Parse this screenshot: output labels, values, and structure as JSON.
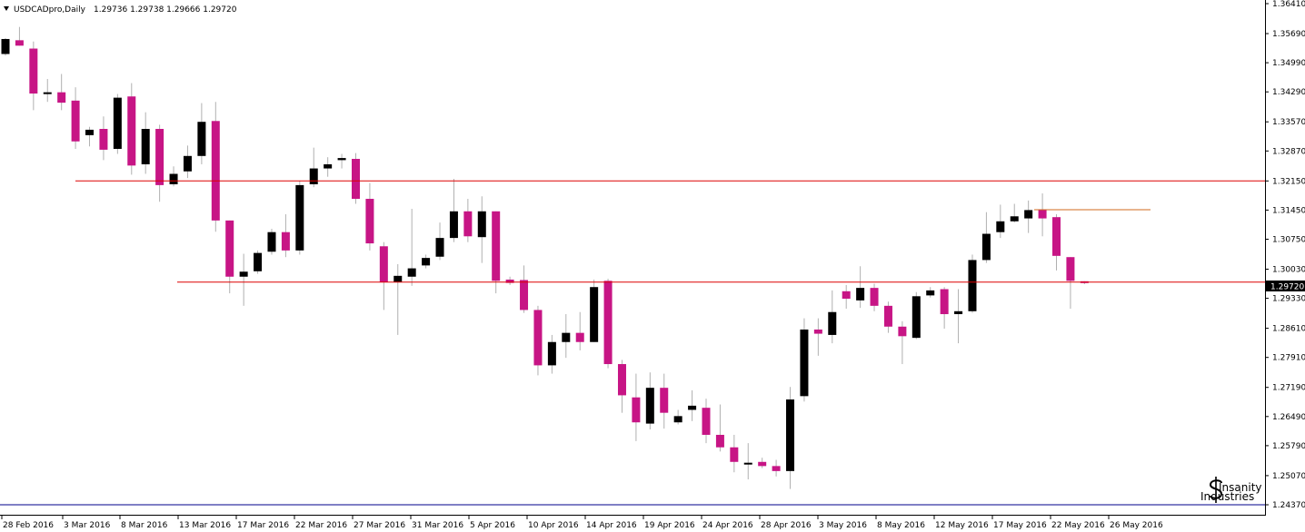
{
  "header": {
    "symbol": "USDCADpro,Daily",
    "ohlc": "1.29736 1.29738 1.29666 1.29720"
  },
  "watermark": {
    "text_line1": "Insanity",
    "text_line2": "Industries",
    "icon": "dollar-sign-icon"
  },
  "colors": {
    "bull": "#000000",
    "bear": "#c71585",
    "wick": "#b0b0b0",
    "level": "#dd0000",
    "trend": "#d2691e",
    "base": "#00008b"
  },
  "chart_data": {
    "type": "candlestick",
    "symbol": "USDCADpro",
    "timeframe": "Daily",
    "ylim": [
      1.2437,
      1.3641
    ],
    "y_ticks": [
      "1.36410",
      "1.35690",
      "1.34990",
      "1.34290",
      "1.33570",
      "1.32870",
      "1.32150",
      "1.31450",
      "1.30750",
      "1.30030",
      "1.29330",
      "1.28610",
      "1.27910",
      "1.27190",
      "1.26490",
      "1.25790",
      "1.25070",
      "1.24370"
    ],
    "x_labels": [
      "28 Feb 2016",
      "3 Mar 2016",
      "8 Mar 2016",
      "13 Mar 2016",
      "17 Mar 2016",
      "22 Mar 2016",
      "27 Mar 2016",
      "31 Mar 2016",
      "5 Apr 2016",
      "10 Apr 2016",
      "14 Apr 2016",
      "19 Apr 2016",
      "24 Apr 2016",
      "28 Apr 2016",
      "3 May 2016",
      "8 May 2016",
      "12 May 2016",
      "17 May 2016",
      "22 May 2016",
      "26 May 2016"
    ],
    "current_price": "1.29720",
    "horizontal_levels": [
      1.3215,
      1.2972
    ],
    "short_level": 1.3146,
    "candles": [
      {
        "date": "28 Feb 2016",
        "o": 1.352,
        "h": 1.3558,
        "l": 1.3516,
        "c": 1.3556
      },
      {
        "date": "29 Feb 2016",
        "o": 1.3553,
        "h": 1.3585,
        "l": 1.354,
        "c": 1.354
      },
      {
        "date": "1 Mar 2016",
        "o": 1.3533,
        "h": 1.355,
        "l": 1.3385,
        "c": 1.3425
      },
      {
        "date": "2 Mar 2016",
        "o": 1.3425,
        "h": 1.346,
        "l": 1.3405,
        "c": 1.3428
      },
      {
        "date": "3 Mar 2016",
        "o": 1.3428,
        "h": 1.3472,
        "l": 1.3385,
        "c": 1.3403
      },
      {
        "date": "4 Mar 2016",
        "o": 1.3408,
        "h": 1.344,
        "l": 1.3292,
        "c": 1.331
      },
      {
        "date": "6 Mar 2016",
        "o": 1.3325,
        "h": 1.3345,
        "l": 1.3298,
        "c": 1.3338
      },
      {
        "date": "7 Mar 2016",
        "o": 1.334,
        "h": 1.337,
        "l": 1.3265,
        "c": 1.329
      },
      {
        "date": "8 Mar 2016",
        "o": 1.3292,
        "h": 1.3424,
        "l": 1.328,
        "c": 1.3415
      },
      {
        "date": "9 Mar 2016",
        "o": 1.3418,
        "h": 1.345,
        "l": 1.323,
        "c": 1.3252
      },
      {
        "date": "10 Mar 2016",
        "o": 1.3255,
        "h": 1.338,
        "l": 1.3232,
        "c": 1.334
      },
      {
        "date": "11 Mar 2016",
        "o": 1.334,
        "h": 1.335,
        "l": 1.3165,
        "c": 1.3205
      },
      {
        "date": "13 Mar 2016",
        "o": 1.3207,
        "h": 1.325,
        "l": 1.3202,
        "c": 1.3232
      },
      {
        "date": "14 Mar 2016",
        "o": 1.3238,
        "h": 1.33,
        "l": 1.3222,
        "c": 1.3275
      },
      {
        "date": "15 Mar 2016",
        "o": 1.3275,
        "h": 1.3402,
        "l": 1.3255,
        "c": 1.3357
      },
      {
        "date": "16 Mar 2016",
        "o": 1.3359,
        "h": 1.3405,
        "l": 1.3093,
        "c": 1.312
      },
      {
        "date": "17 Mar 2016",
        "o": 1.312,
        "h": 1.312,
        "l": 1.2945,
        "c": 1.2985
      },
      {
        "date": "18 Mar 2016",
        "o": 1.2985,
        "h": 1.304,
        "l": 1.2915,
        "c": 1.2997
      },
      {
        "date": "20 Mar 2016",
        "o": 1.2998,
        "h": 1.3048,
        "l": 1.2992,
        "c": 1.3042
      },
      {
        "date": "21 Mar 2016",
        "o": 1.3045,
        "h": 1.31,
        "l": 1.3038,
        "c": 1.3092
      },
      {
        "date": "22 Mar 2016",
        "o": 1.3092,
        "h": 1.3135,
        "l": 1.3032,
        "c": 1.3048
      },
      {
        "date": "23 Mar 2016",
        "o": 1.3048,
        "h": 1.3215,
        "l": 1.3038,
        "c": 1.3205
      },
      {
        "date": "24 Mar 2016",
        "o": 1.3207,
        "h": 1.3295,
        "l": 1.32,
        "c": 1.3245
      },
      {
        "date": "25 Mar 2016",
        "o": 1.3245,
        "h": 1.3272,
        "l": 1.3225,
        "c": 1.3255
      },
      {
        "date": "27 Mar 2016",
        "o": 1.3265,
        "h": 1.328,
        "l": 1.3245,
        "c": 1.327
      },
      {
        "date": "28 Mar 2016",
        "o": 1.3268,
        "h": 1.3282,
        "l": 1.316,
        "c": 1.3172
      },
      {
        "date": "29 Mar 2016",
        "o": 1.3172,
        "h": 1.321,
        "l": 1.3048,
        "c": 1.3065
      },
      {
        "date": "30 Mar 2016",
        "o": 1.3058,
        "h": 1.3068,
        "l": 1.2905,
        "c": 1.2972
      },
      {
        "date": "31 Mar 2016",
        "o": 1.2972,
        "h": 1.3015,
        "l": 1.2845,
        "c": 1.2987
      },
      {
        "date": "1 Apr 2016",
        "o": 1.2985,
        "h": 1.3148,
        "l": 1.2963,
        "c": 1.3005
      },
      {
        "date": "3 Apr 2016",
        "o": 1.3012,
        "h": 1.3038,
        "l": 1.3005,
        "c": 1.303
      },
      {
        "date": "4 Apr 2016",
        "o": 1.3033,
        "h": 1.3115,
        "l": 1.3025,
        "c": 1.3078
      },
      {
        "date": "5 Apr 2016",
        "o": 1.3078,
        "h": 1.322,
        "l": 1.3068,
        "c": 1.3142
      },
      {
        "date": "6 Apr 2016",
        "o": 1.3142,
        "h": 1.3172,
        "l": 1.3068,
        "c": 1.3082
      },
      {
        "date": "7 Apr 2016",
        "o": 1.308,
        "h": 1.3178,
        "l": 1.3018,
        "c": 1.3142
      },
      {
        "date": "8 Apr 2016",
        "o": 1.3142,
        "h": 1.3142,
        "l": 1.2945,
        "c": 1.2975
      },
      {
        "date": "10 Apr 2016",
        "o": 1.2978,
        "h": 1.2985,
        "l": 1.2965,
        "c": 1.297
      },
      {
        "date": "11 Apr 2016",
        "o": 1.2977,
        "h": 1.3012,
        "l": 1.2898,
        "c": 1.2905
      },
      {
        "date": "12 Apr 2016",
        "o": 1.2905,
        "h": 1.2915,
        "l": 1.2748,
        "c": 1.2772
      },
      {
        "date": "13 Apr 2016",
        "o": 1.2772,
        "h": 1.2845,
        "l": 1.2752,
        "c": 1.2828
      },
      {
        "date": "14 Apr 2016",
        "o": 1.2828,
        "h": 1.2895,
        "l": 1.279,
        "c": 1.285
      },
      {
        "date": "15 Apr 2016",
        "o": 1.285,
        "h": 1.29,
        "l": 1.2808,
        "c": 1.2828
      },
      {
        "date": "17 Apr 2016",
        "o": 1.2828,
        "h": 1.2978,
        "l": 1.2828,
        "c": 1.296
      },
      {
        "date": "18 Apr 2016",
        "o": 1.2975,
        "h": 1.298,
        "l": 1.2765,
        "c": 1.2775
      },
      {
        "date": "19 Apr 2016",
        "o": 1.2775,
        "h": 1.2785,
        "l": 1.2658,
        "c": 1.27
      },
      {
        "date": "20 Apr 2016",
        "o": 1.2695,
        "h": 1.2752,
        "l": 1.259,
        "c": 1.2635
      },
      {
        "date": "21 Apr 2016",
        "o": 1.2632,
        "h": 1.2755,
        "l": 1.2618,
        "c": 1.2718
      },
      {
        "date": "22 Apr 2016",
        "o": 1.2718,
        "h": 1.2752,
        "l": 1.262,
        "c": 1.2658
      },
      {
        "date": "24 Apr 2016",
        "o": 1.2635,
        "h": 1.2665,
        "l": 1.263,
        "c": 1.265
      },
      {
        "date": "25 Apr 2016",
        "o": 1.2665,
        "h": 1.2712,
        "l": 1.2638,
        "c": 1.2675
      },
      {
        "date": "26 Apr 2016",
        "o": 1.267,
        "h": 1.2692,
        "l": 1.2585,
        "c": 1.2605
      },
      {
        "date": "27 Apr 2016",
        "o": 1.2605,
        "h": 1.2678,
        "l": 1.2565,
        "c": 1.2575
      },
      {
        "date": "28 Apr 2016",
        "o": 1.2575,
        "h": 1.2605,
        "l": 1.2515,
        "c": 1.254
      },
      {
        "date": "29 Apr 2016",
        "o": 1.2538,
        "h": 1.2585,
        "l": 1.2498,
        "c": 1.2538
      },
      {
        "date": "1 May 2016",
        "o": 1.254,
        "h": 1.255,
        "l": 1.2525,
        "c": 1.253
      },
      {
        "date": "2 May 2016",
        "o": 1.253,
        "h": 1.2545,
        "l": 1.2505,
        "c": 1.2518
      },
      {
        "date": "3 May 2016",
        "o": 1.2518,
        "h": 1.272,
        "l": 1.2475,
        "c": 1.269
      },
      {
        "date": "4 May 2016",
        "o": 1.2698,
        "h": 1.2885,
        "l": 1.2685,
        "c": 1.2858
      },
      {
        "date": "5 May 2016",
        "o": 1.2858,
        "h": 1.2885,
        "l": 1.2795,
        "c": 1.2848
      },
      {
        "date": "6 May 2016",
        "o": 1.2845,
        "h": 1.2952,
        "l": 1.2825,
        "c": 1.29
      },
      {
        "date": "8 May 2016",
        "o": 1.295,
        "h": 1.2965,
        "l": 1.2908,
        "c": 1.2932
      },
      {
        "date": "9 May 2016",
        "o": 1.2928,
        "h": 1.301,
        "l": 1.291,
        "c": 1.2958
      },
      {
        "date": "10 May 2016",
        "o": 1.2958,
        "h": 1.2968,
        "l": 1.2902,
        "c": 1.2915
      },
      {
        "date": "11 May 2016",
        "o": 1.2915,
        "h": 1.2925,
        "l": 1.285,
        "c": 1.2865
      },
      {
        "date": "12 May 2016",
        "o": 1.2865,
        "h": 1.2878,
        "l": 1.2775,
        "c": 1.2842
      },
      {
        "date": "13 May 2016",
        "o": 1.2838,
        "h": 1.2948,
        "l": 1.2835,
        "c": 1.2938
      },
      {
        "date": "15 May 2016",
        "o": 1.294,
        "h": 1.296,
        "l": 1.2935,
        "c": 1.2952
      },
      {
        "date": "16 May 2016",
        "o": 1.2955,
        "h": 1.296,
        "l": 1.286,
        "c": 1.2895
      },
      {
        "date": "17 May 2016",
        "o": 1.2895,
        "h": 1.2955,
        "l": 1.2825,
        "c": 1.2902
      },
      {
        "date": "18 May 2016",
        "o": 1.2902,
        "h": 1.3038,
        "l": 1.2898,
        "c": 1.3025
      },
      {
        "date": "19 May 2016",
        "o": 1.3025,
        "h": 1.314,
        "l": 1.3018,
        "c": 1.3088
      },
      {
        "date": "20 May 2016",
        "o": 1.3092,
        "h": 1.3158,
        "l": 1.3078,
        "c": 1.3118
      },
      {
        "date": "22 May 2016",
        "o": 1.3118,
        "h": 1.316,
        "l": 1.3115,
        "c": 1.313
      },
      {
        "date": "23 May 2016",
        "o": 1.3125,
        "h": 1.3168,
        "l": 1.309,
        "c": 1.3145
      },
      {
        "date": "24 May 2016",
        "o": 1.3145,
        "h": 1.3185,
        "l": 1.3082,
        "c": 1.3125
      },
      {
        "date": "25 May 2016",
        "o": 1.3128,
        "h": 1.3135,
        "l": 1.3,
        "c": 1.3035
      },
      {
        "date": "26 May 2016",
        "o": 1.3032,
        "h": 1.3032,
        "l": 1.2908,
        "c": 1.2975
      },
      {
        "date": "27 May 2016",
        "o": 1.2974,
        "h": 1.2974,
        "l": 1.2967,
        "c": 1.2972
      }
    ]
  }
}
